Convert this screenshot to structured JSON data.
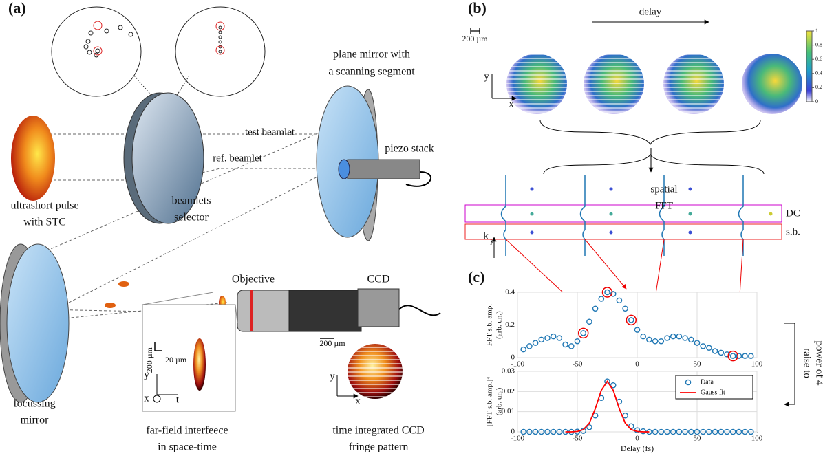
{
  "panel_labels": [
    "(a)",
    "(b)",
    "(c)"
  ],
  "diagram": {
    "labels": [
      "plane mirror with",
      "a scanning segment",
      "test beamlet",
      "ref. beamlet",
      "piezo stack",
      "ultrashort pulse",
      "with STC",
      "beamlets",
      "selector",
      "Objective",
      "CCD",
      "focussing",
      "mirror",
      "far-field interfeece",
      "in space-time",
      "time integrated CCD",
      "fringe pattern",
      "200 µm",
      "200 µm",
      "20 µm",
      "delay",
      "200 µm",
      "spatial",
      "FFT",
      "DC",
      "s.b.",
      "raise to",
      "power of 4",
      "y",
      "x",
      "y",
      "x",
      "t",
      "y",
      "x",
      "k",
      "y"
    ]
  },
  "colorbar": {
    "ticks": [
      0,
      0.2,
      0.4,
      0.6,
      0.8,
      1
    ]
  },
  "chart_data": [
    {
      "type": "scatter",
      "ylabel": [
        "FFT s.b. amp.",
        "(arb. un.)"
      ],
      "color": "#1f77b4",
      "grid": true,
      "x": [
        -95,
        -90,
        -85,
        -80,
        -75,
        -70,
        -65,
        -60,
        -55,
        -50,
        -45,
        -40,
        -35,
        -30,
        -25,
        -20,
        -15,
        -10,
        -5,
        0,
        5,
        10,
        15,
        20,
        25,
        30,
        35,
        40,
        45,
        50,
        55,
        60,
        65,
        70,
        75,
        80,
        85,
        90,
        95
      ],
      "values": [
        0.05,
        0.07,
        0.09,
        0.11,
        0.12,
        0.13,
        0.12,
        0.08,
        0.07,
        0.1,
        0.15,
        0.22,
        0.3,
        0.36,
        0.4,
        0.39,
        0.35,
        0.3,
        0.23,
        0.17,
        0.13,
        0.11,
        0.1,
        0.1,
        0.12,
        0.13,
        0.13,
        0.12,
        0.11,
        0.09,
        0.07,
        0.06,
        0.04,
        0.03,
        0.02,
        0.01,
        0.01,
        0.01,
        0.01
      ],
      "xlim": [
        -100,
        100
      ],
      "xticks": [
        -100,
        -50,
        0,
        50,
        100
      ],
      "ylim": [
        0,
        0.4
      ],
      "yticks": [
        0,
        0.2,
        0.4
      ]
    },
    {
      "type": "scatter",
      "xlabel": "Delay (fs)",
      "ylabel": [
        "[FFT s.b. amp.]⁴",
        "(arb. un.)"
      ],
      "grid": true,
      "legend": "northeast",
      "x": [
        -95,
        -90,
        -85,
        -80,
        -75,
        -70,
        -65,
        -60,
        -55,
        -50,
        -45,
        -40,
        -35,
        -30,
        -25,
        -20,
        -15,
        -10,
        -5,
        0,
        5,
        10,
        15,
        20,
        25,
        30,
        35,
        40,
        45,
        50,
        55,
        60,
        65,
        70,
        75,
        80,
        85,
        90,
        95
      ],
      "series": [
        {
          "name": "Data",
          "color": "#1f77b4",
          "marker": "circle",
          "values": [
            0,
            0,
            0,
            0,
            0,
            0,
            0,
            0,
            0,
            0.0001,
            0.0005,
            0.0023,
            0.0081,
            0.0168,
            0.025,
            0.0231,
            0.015,
            0.0081,
            0.0028,
            0.0008,
            0.0003,
            0,
            0,
            0,
            0,
            0,
            0,
            0,
            0,
            0,
            0,
            0,
            0,
            0,
            0,
            0,
            0,
            0,
            0
          ]
        },
        {
          "name": "Gauss fit",
          "color": "#ff0000",
          "marker": "line",
          "x": [
            -60,
            -55,
            -50,
            -45,
            -40,
            -35,
            -30,
            -25,
            -20,
            -15,
            -10,
            -5,
            0,
            5,
            10
          ],
          "values": [
            0,
            0,
            0.0002,
            0.0011,
            0.0043,
            0.0115,
            0.0206,
            0.025,
            0.0206,
            0.0115,
            0.0043,
            0.0011,
            0.0002,
            0,
            0
          ]
        }
      ],
      "xlim": [
        -100,
        100
      ],
      "xticks": [
        -100,
        -50,
        0,
        50,
        100
      ],
      "ylim": [
        0,
        0.03
      ],
      "yticks": [
        0,
        0.01,
        0.02,
        0.03
      ]
    }
  ]
}
